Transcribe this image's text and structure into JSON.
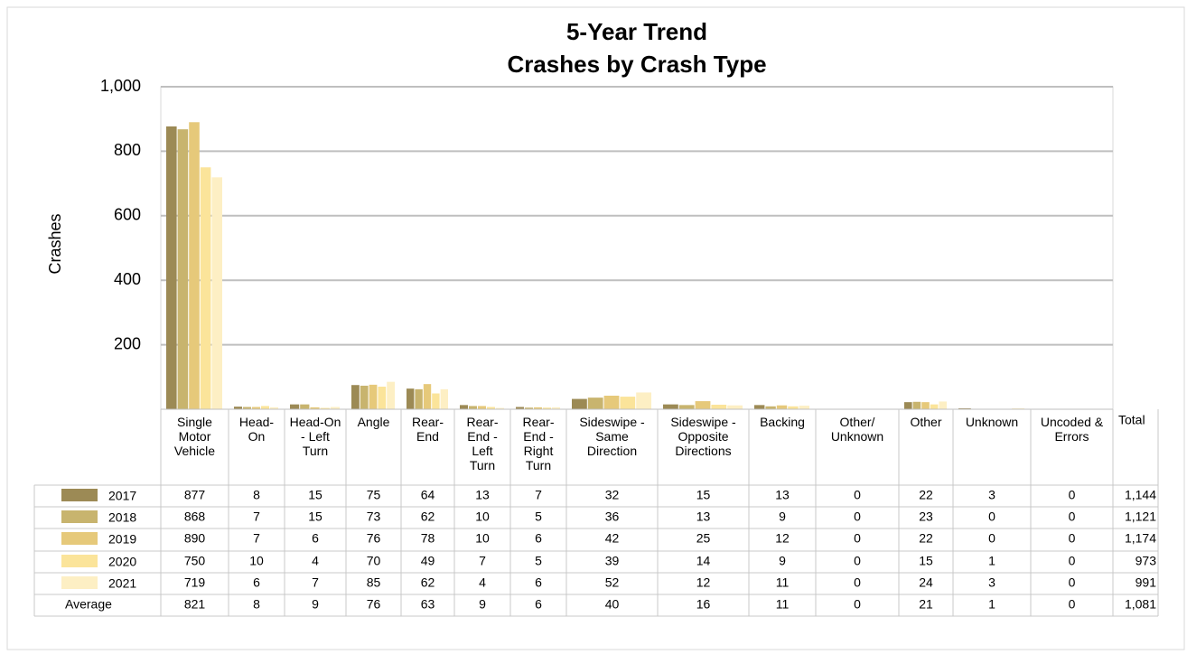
{
  "chart_data": {
    "type": "bar",
    "title": "5-Year Trend",
    "subtitle": "Crashes by Crash Type",
    "y_label": "Crashes",
    "categories": [
      "Single Motor Vehicle",
      "Head-On",
      "Head-On - Left Turn",
      "Angle",
      "Rear-End",
      "Rear-End - Left Turn",
      "Rear-End - Right Turn",
      "Sideswipe - Same Direction",
      "Sideswipe - Opposite Directions",
      "Backing",
      "Other/ Unknown",
      "Other",
      "Unknown",
      "Uncoded & Errors"
    ],
    "total_header": "Total",
    "series": [
      {
        "name": "2017",
        "color": "#9c8a55",
        "values": [
          877,
          8,
          15,
          75,
          64,
          13,
          7,
          32,
          15,
          13,
          0,
          22,
          3,
          0
        ],
        "total": 1144,
        "total_label": "1,144"
      },
      {
        "name": "2018",
        "color": "#c8b46e",
        "values": [
          868,
          7,
          15,
          73,
          62,
          10,
          5,
          36,
          13,
          9,
          0,
          23,
          0,
          0
        ],
        "total": 1121,
        "total_label": "1,121"
      },
      {
        "name": "2019",
        "color": "#e6c97a",
        "values": [
          890,
          7,
          6,
          76,
          78,
          10,
          6,
          42,
          25,
          12,
          0,
          22,
          0,
          0
        ],
        "total": 1174,
        "total_label": "1,174"
      },
      {
        "name": "2020",
        "color": "#fbe49a",
        "values": [
          750,
          10,
          4,
          70,
          49,
          7,
          5,
          39,
          14,
          9,
          0,
          15,
          1,
          0
        ],
        "total": 973,
        "total_label": "973"
      },
      {
        "name": "2021",
        "color": "#fdefc4",
        "values": [
          719,
          6,
          7,
          85,
          62,
          4,
          6,
          52,
          12,
          11,
          0,
          24,
          3,
          0
        ],
        "total": 991,
        "total_label": "991"
      }
    ],
    "average": {
      "name": "Average",
      "values": [
        821,
        8,
        9,
        76,
        63,
        9,
        6,
        40,
        16,
        11,
        0,
        21,
        1,
        0
      ],
      "total": 1081,
      "total_label": "1,081"
    },
    "ylim": [
      0,
      1000
    ],
    "yticks": [
      200,
      400,
      600,
      800,
      {
        "value": 1000,
        "label": "1,000"
      }
    ],
    "grid": true
  }
}
